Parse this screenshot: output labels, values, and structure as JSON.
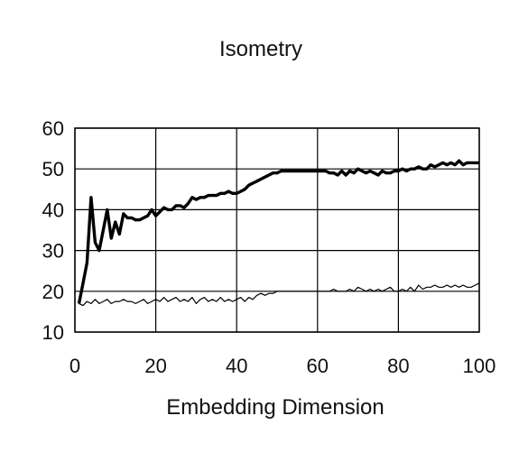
{
  "chart_data": {
    "type": "line",
    "title": "Isometry",
    "xlabel": "Embedding Dimension",
    "ylabel": "",
    "xlim": [
      0,
      100
    ],
    "ylim": [
      10,
      60
    ],
    "xticks": [
      0,
      20,
      40,
      60,
      80,
      100
    ],
    "yticks": [
      10,
      20,
      30,
      40,
      50,
      60
    ],
    "grid": true,
    "legend": "none",
    "series": [
      {
        "color": "#000000",
        "x": [
          1,
          2,
          3,
          4,
          5,
          6,
          7,
          8,
          9,
          10,
          11,
          12,
          13,
          14,
          15,
          16,
          17,
          18,
          19,
          20,
          21,
          22,
          23,
          24,
          25,
          26,
          27,
          28,
          29,
          30,
          31,
          32,
          33,
          34,
          35,
          36,
          37,
          38,
          39,
          40,
          41,
          42,
          43,
          44,
          45,
          46,
          47,
          48,
          49,
          50,
          51,
          52,
          53,
          54,
          55,
          56,
          57,
          58,
          59,
          60,
          61,
          62,
          63,
          64,
          65,
          66,
          67,
          68,
          69,
          70,
          71,
          72,
          73,
          74,
          75,
          76,
          77,
          78,
          79,
          80,
          81,
          82,
          83,
          84,
          85,
          86,
          87,
          88,
          89,
          90,
          91,
          92,
          93,
          94,
          95,
          96,
          97,
          98,
          99,
          100
        ],
        "y": [
          17,
          22,
          27,
          43,
          32,
          30,
          35,
          40,
          33,
          37,
          34,
          39,
          38,
          38,
          37.5,
          37.5,
          38,
          38.5,
          40,
          38.5,
          39.5,
          40.5,
          40,
          40,
          41,
          41,
          40.5,
          41.5,
          43,
          42.5,
          43,
          43,
          43.5,
          43.5,
          43.5,
          44,
          44,
          44.5,
          44,
          44,
          44.5,
          45,
          46,
          46.5,
          47,
          47.5,
          48,
          48.5,
          49,
          49,
          49.5,
          49.5,
          49.5,
          49.5,
          49.5,
          49.5,
          49.5,
          49.5,
          49.5,
          49.5,
          49.5,
          49.5,
          49,
          49,
          48.5,
          49.5,
          48.5,
          49.5,
          49,
          50,
          49.5,
          49,
          49.5,
          49,
          48.5,
          49.5,
          49,
          49,
          49.5,
          49.5,
          50,
          49.5,
          50,
          50,
          50.5,
          50,
          50,
          51,
          50.5,
          51,
          51.5,
          51,
          51.5,
          51,
          52,
          51,
          51.5,
          51.5,
          51.5,
          51.5
        ]
      },
      {
        "color": "#000000",
        "x": [
          1,
          2,
          3,
          4,
          5,
          6,
          7,
          8,
          9,
          10,
          11,
          12,
          13,
          14,
          15,
          16,
          17,
          18,
          19,
          20,
          21,
          22,
          23,
          24,
          25,
          26,
          27,
          28,
          29,
          30,
          31,
          32,
          33,
          34,
          35,
          36,
          37,
          38,
          39,
          40,
          41,
          42,
          43,
          44,
          45,
          46,
          47,
          48,
          49,
          50,
          51,
          52,
          53,
          54,
          55,
          56,
          57,
          58,
          59,
          60,
          61,
          62,
          63,
          64,
          65,
          66,
          67,
          68,
          69,
          70,
          71,
          72,
          73,
          74,
          75,
          76,
          77,
          78,
          79,
          80,
          81,
          82,
          83,
          84,
          85,
          86,
          87,
          88,
          89,
          90,
          91,
          92,
          93,
          94,
          95,
          96,
          97,
          98,
          99,
          100
        ],
        "y": [
          17,
          16.5,
          17.5,
          17,
          18,
          17,
          17.5,
          18,
          17,
          17.5,
          17.5,
          18,
          17.5,
          17.5,
          17,
          17.5,
          18,
          17,
          17.5,
          18,
          17.5,
          18.5,
          17.5,
          18,
          18.5,
          17.5,
          18,
          17.5,
          18.5,
          17,
          18,
          18.5,
          17.5,
          18,
          17.5,
          18.5,
          17.5,
          18,
          17.5,
          18,
          18.5,
          17.5,
          18.5,
          18,
          19,
          19.5,
          19,
          19.5,
          19.5,
          20,
          20,
          20,
          20,
          20,
          20,
          20,
          20,
          20,
          20,
          20,
          20,
          20,
          20,
          20.5,
          20,
          20,
          20,
          20.5,
          20,
          21,
          20.5,
          20,
          20.5,
          20,
          20.5,
          20,
          20.5,
          21,
          20,
          20,
          20.5,
          20,
          21,
          20,
          21.5,
          20.5,
          21,
          21,
          21.5,
          21,
          21,
          21.5,
          21,
          21.5,
          21,
          21.5,
          21,
          21,
          21.5,
          22
        ]
      }
    ]
  }
}
